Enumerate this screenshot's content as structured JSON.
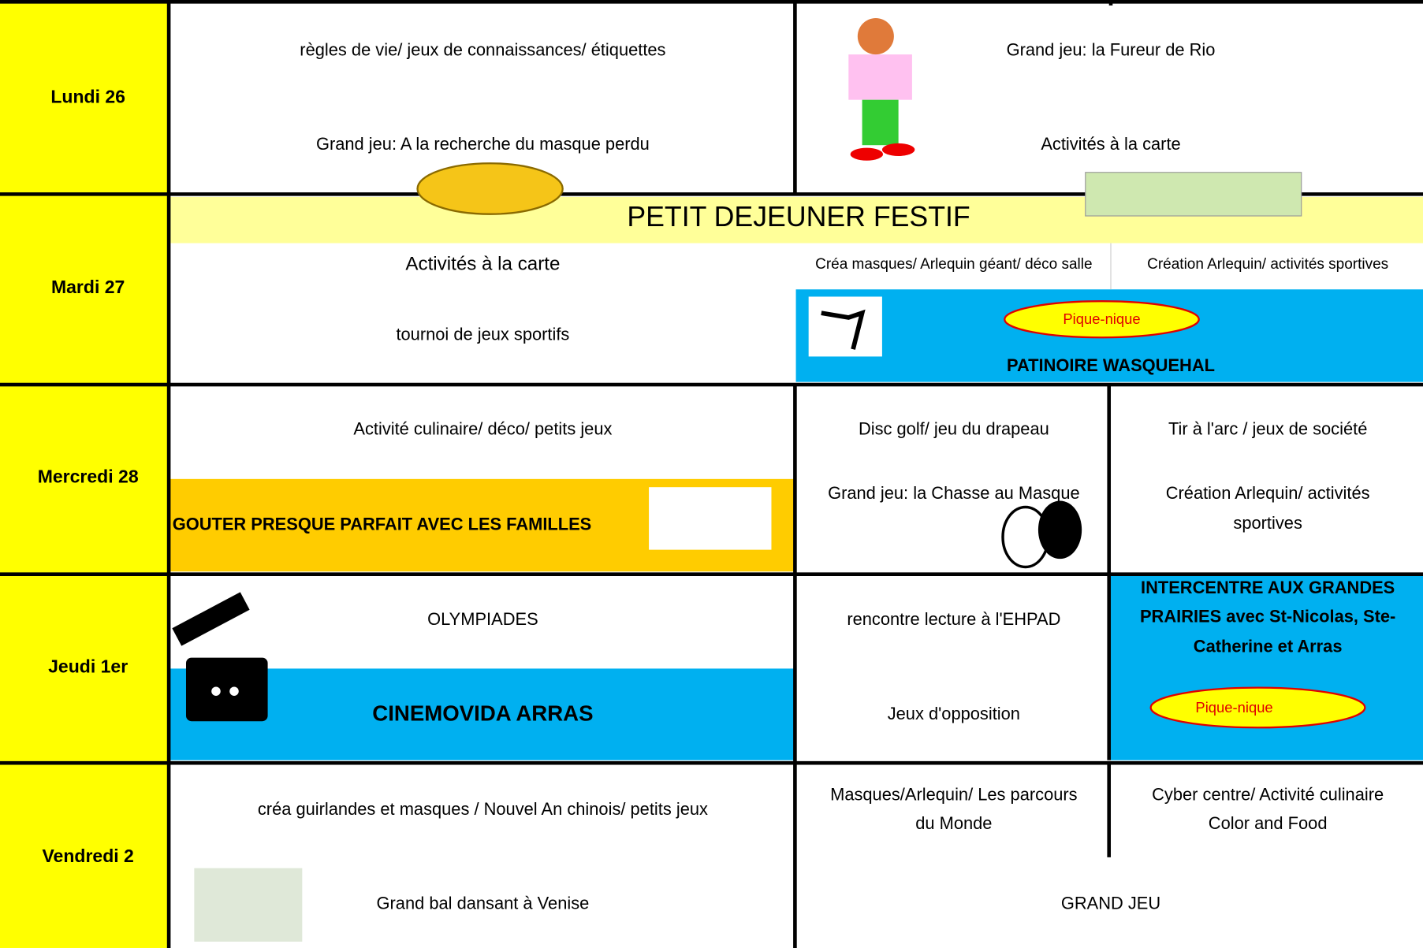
{
  "schedule": {
    "rows": [
      {
        "day": "Lundi 26",
        "items": [
          "règles de vie/ jeux de connaissances/ étiquettes",
          "Grand jeu: A la recherche du masque perdu",
          "Grand jeu: la Fureur de Rio",
          "Activités à la carte"
        ]
      },
      {
        "day": "Mardi 27",
        "banner": "PETIT DEJEUNER FESTIF",
        "items": [
          "Activités à la carte",
          "tournoi de jeux sportifs",
          "Créa masques/ Arlequin géant/ déco salle",
          "Création Arlequin/ activités sportives",
          "Pique-nique",
          "PATINOIRE WASQUEHAL"
        ]
      },
      {
        "day": "Mercredi 28",
        "items": [
          "Activité culinaire/ déco/ petits jeux",
          "GOUTER PRESQUE PARFAIT AVEC LES FAMILLES",
          "Disc golf/ jeu du drapeau",
          "Grand jeu: la Chasse au Masque",
          "Tir à l'arc / jeux de société",
          "Création Arlequin/ activités",
          "sportives"
        ]
      },
      {
        "day": "Jeudi 1er",
        "items": [
          "OLYMPIADES",
          "CINEMOVIDA ARRAS",
          "rencontre lecture à l'EHPAD",
          "Jeux d'opposition",
          "INTERCENTRE AUX GRANDES",
          "PRAIRIES avec St-Nicolas, Ste-",
          "Catherine et Arras",
          "Pique-nique"
        ]
      },
      {
        "day": "Vendredi 2",
        "items": [
          "créa guirlandes et masques / Nouvel An chinois/  petits jeux",
          "Grand bal dansant à Venise",
          "Masques/Arlequin/ Les parcours",
          "du Monde",
          "Cyber centre/ Activité culinaire",
          "Color and Food",
          "GRAND JEU"
        ]
      }
    ]
  }
}
